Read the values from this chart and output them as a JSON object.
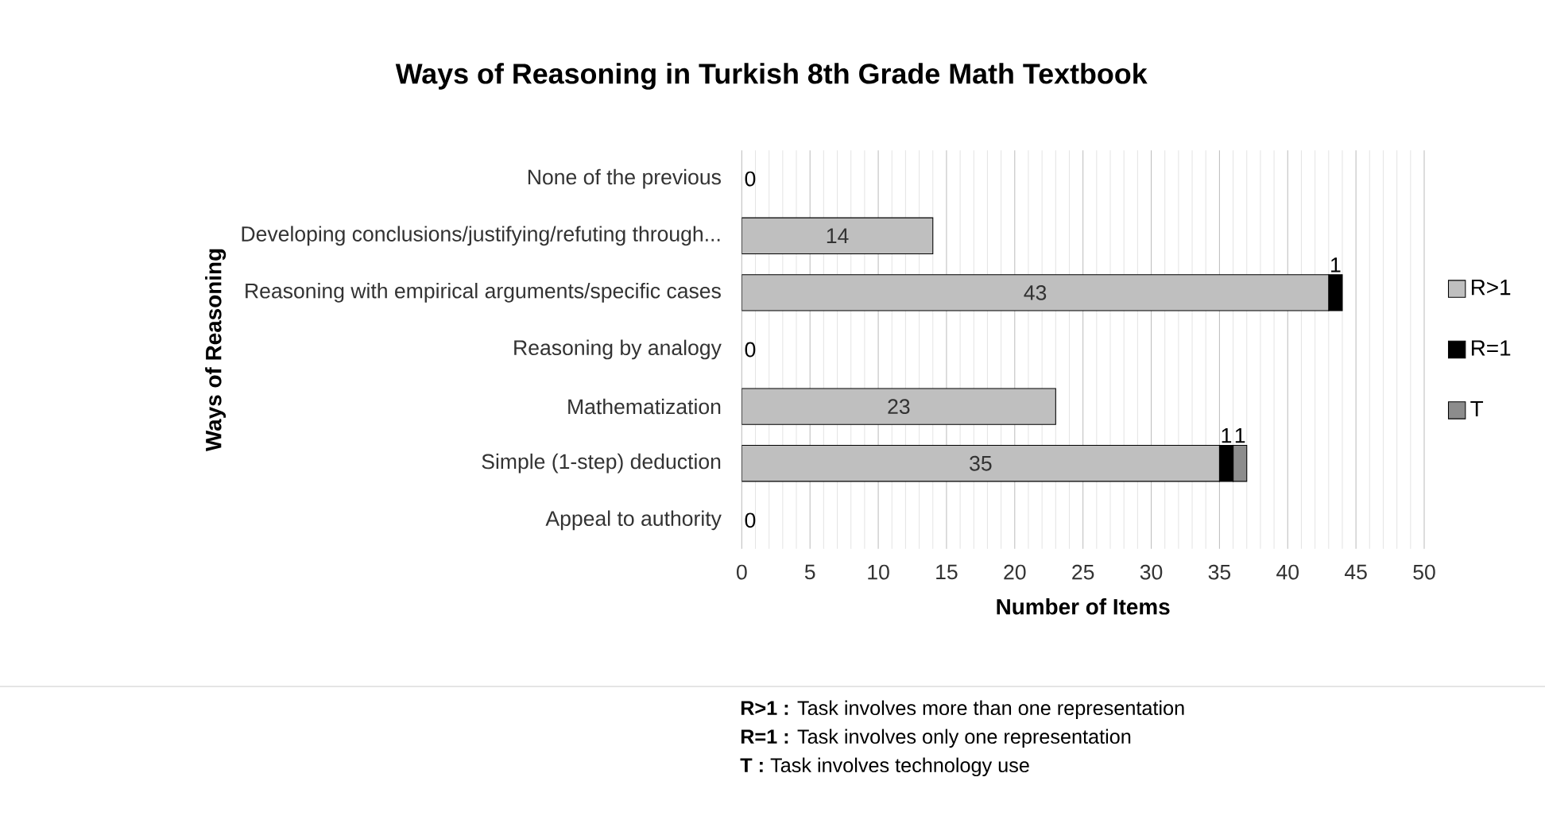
{
  "chart_data": {
    "type": "bar",
    "orientation": "horizontal",
    "stacked": true,
    "title": "Ways of Reasoning in Turkish 8th Grade Math Textbook",
    "xlabel": "Number of Items",
    "ylabel": "Ways of Reasoning",
    "categories": [
      "None of the previous",
      "Developing conclusions/justifying/refuting through...",
      "Reasoning with empirical arguments/specific cases",
      "Reasoning by analogy",
      "Mathematization",
      "Simple (1-step) deduction",
      "Appeal to authority"
    ],
    "series": [
      {
        "name": "R>1",
        "color": "#bfbfbf",
        "values": [
          0,
          14,
          43,
          0,
          23,
          35,
          0
        ],
        "value_labels": [
          "0",
          "14",
          "43",
          "0",
          "23",
          "35",
          "0"
        ]
      },
      {
        "name": "R=1",
        "color": "#000000",
        "values": [
          0,
          0,
          1,
          0,
          0,
          1,
          0
        ],
        "value_labels": [
          null,
          null,
          "1",
          null,
          null,
          "1",
          null
        ]
      },
      {
        "name": "T",
        "color": "#8c8c8c",
        "values": [
          0,
          0,
          0,
          0,
          0,
          1,
          0
        ],
        "value_labels": [
          null,
          null,
          null,
          null,
          null,
          "1",
          null
        ]
      }
    ],
    "xlim": [
      0,
      50
    ],
    "xticks": [
      0,
      5,
      10,
      15,
      20,
      25,
      30,
      35,
      40,
      45,
      50
    ],
    "grid": "x",
    "legend": "right",
    "annotations": [
      "**R>1 :** Task involves more than one representation",
      "**R=1 :** Task involves only one representation",
      "**T :** Task involves technology use"
    ]
  }
}
